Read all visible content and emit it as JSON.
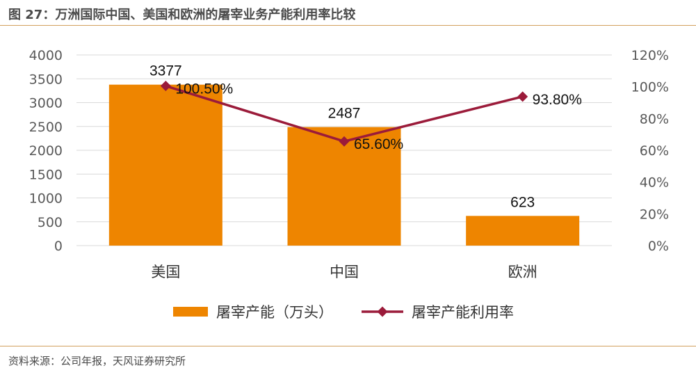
{
  "figure": {
    "title": "图 27：万洲国际中国、美国和欧洲的屠宰业务产能利用率比较",
    "source": "资料来源：公司年报，天风证券研究所"
  },
  "colors": {
    "bar": "#ee8500",
    "line": "#9b1b3a",
    "grid": "#d9d9d9",
    "rule": "#d2a05c"
  },
  "chart_data": {
    "type": "bar",
    "categories": [
      "美国",
      "中国",
      "欧洲"
    ],
    "series": [
      {
        "name": "屠宰产能（万头）",
        "type": "bar",
        "axis": "left",
        "values": [
          3377,
          2487,
          623
        ],
        "labels": [
          "3377",
          "2487",
          "623"
        ]
      },
      {
        "name": "屠宰产能利用率",
        "type": "line",
        "axis": "right",
        "values": [
          100.5,
          65.6,
          93.8
        ],
        "labels": [
          "100.50%",
          "65.60%",
          "93.80%"
        ]
      }
    ],
    "left_axis": {
      "min": 0,
      "max": 4000,
      "ticks": [
        "0",
        "500",
        "1000",
        "1500",
        "2000",
        "2500",
        "3000",
        "3500",
        "4000"
      ]
    },
    "right_axis": {
      "min": 0,
      "max": 120,
      "ticks": [
        "0%",
        "20%",
        "40%",
        "60%",
        "80%",
        "100%",
        "120%"
      ]
    },
    "grid": true,
    "legend_position": "bottom"
  }
}
